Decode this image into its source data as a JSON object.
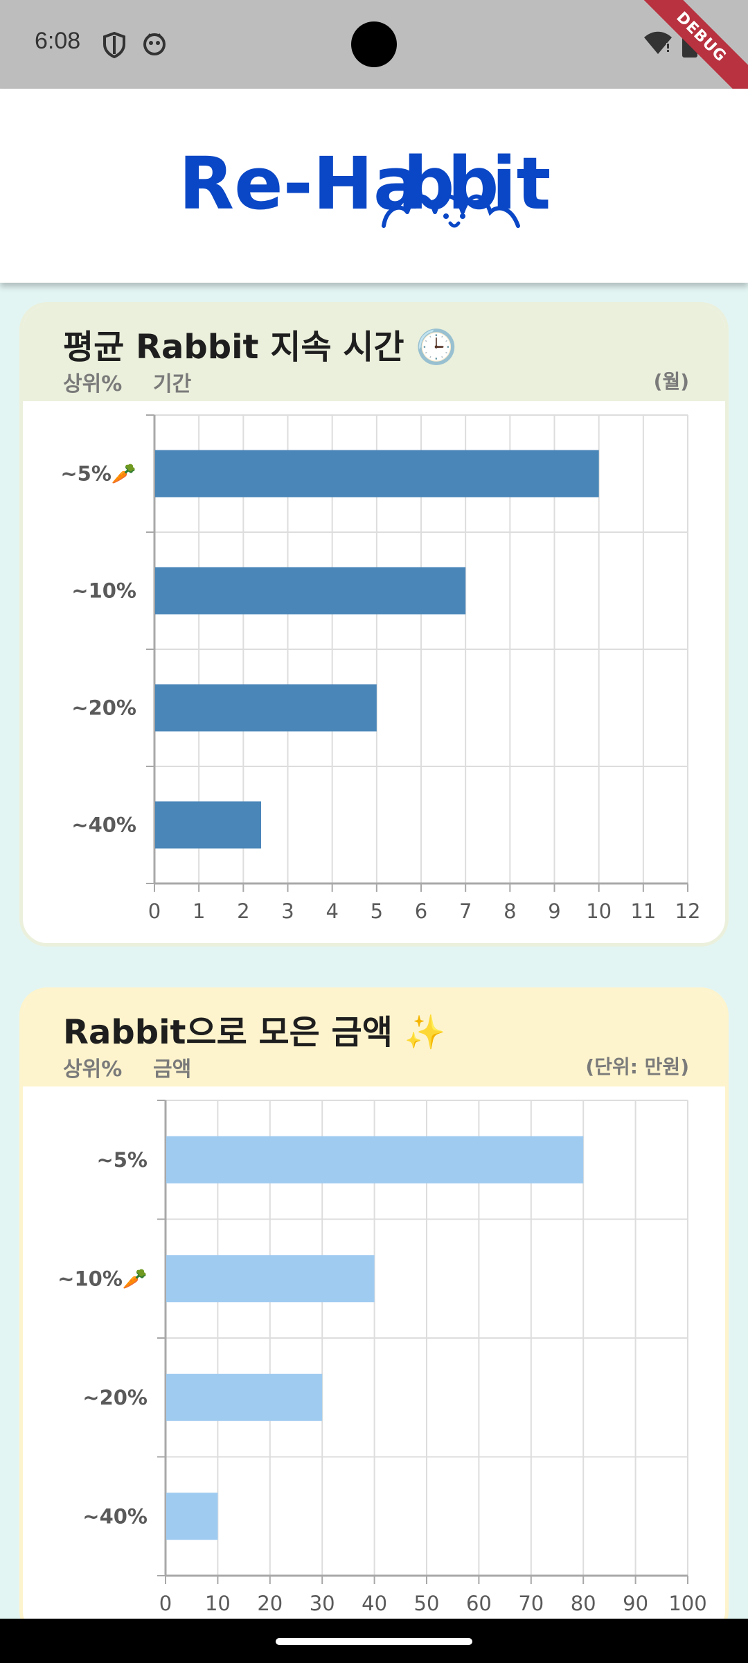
{
  "status_bar": {
    "time": "6:08"
  },
  "debug_label": "DEBUG",
  "header": {
    "logo_text": "Re-Habbit"
  },
  "chart_data": [
    {
      "type": "bar",
      "orientation": "horizontal",
      "title": "평균 Rabbit 지속 시간 🕒",
      "rank_label": "상위%",
      "metric_label": "기간",
      "unit_label": "(월)",
      "categories": [
        "~5%🥕",
        "~10%",
        "~20%",
        "~40%"
      ],
      "values": [
        10,
        7,
        5,
        2.4
      ],
      "xlim": [
        0,
        12
      ],
      "xticks": [
        0,
        1,
        2,
        3,
        4,
        5,
        6,
        7,
        8,
        9,
        10,
        11,
        12
      ],
      "grid": true,
      "color": "#4a86b8"
    },
    {
      "type": "bar",
      "orientation": "horizontal",
      "title": "Rabbit으로 모은 금액 ✨",
      "rank_label": "상위%",
      "metric_label": "금액",
      "unit_label": "(단위: 만원)",
      "categories": [
        "~5%",
        "~10%🥕",
        "~20%",
        "~40%"
      ],
      "values": [
        80,
        40,
        30,
        10
      ],
      "xlim": [
        0,
        100
      ],
      "xticks": [
        0,
        10,
        20,
        30,
        40,
        50,
        60,
        70,
        80,
        90,
        100
      ],
      "grid": true,
      "color": "#9fcbf1"
    }
  ]
}
